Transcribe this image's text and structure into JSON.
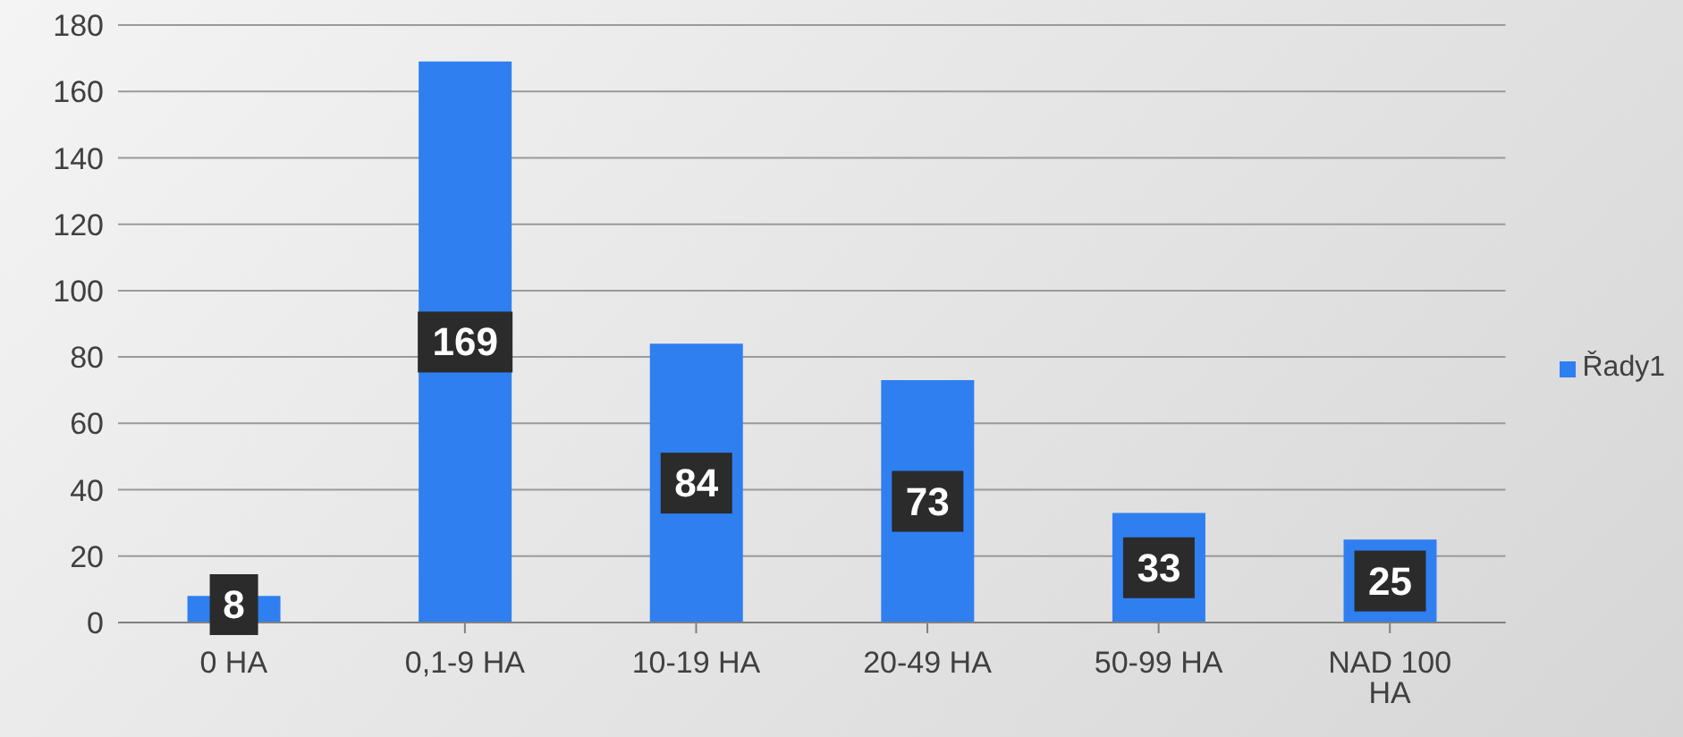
{
  "chart_data": {
    "type": "bar",
    "categories": [
      "0 HA",
      "0,1-9 HA",
      "10-19 HA",
      "20-49 HA",
      "50-99 HA",
      "NAD 100 HA"
    ],
    "series": [
      {
        "name": "Řady1",
        "color": "#2f7ff0",
        "values": [
          8,
          169,
          84,
          73,
          33,
          25
        ]
      }
    ],
    "ylim": [
      0,
      180
    ],
    "yticks": [
      0,
      20,
      40,
      60,
      80,
      100,
      120,
      140,
      160,
      180
    ],
    "grid": "y",
    "legend": "right",
    "data_labels": true
  }
}
